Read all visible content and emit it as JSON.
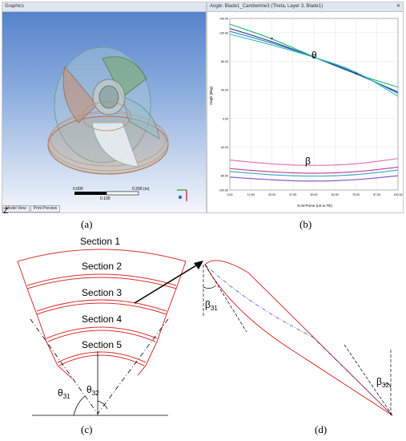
{
  "figure": {
    "panel_a": {
      "window_title": "Graphics",
      "scale": {
        "tick_left": "0.000",
        "tick_mid": "0.100",
        "tick_right": "0.200 (m)"
      },
      "tabs": [
        "Model View",
        "Print Preview"
      ],
      "corner_glyph": "Z",
      "caption": "(a)"
    },
    "panel_b": {
      "window_title": "Angle: Blade1_Camberline3 (Theta, Layer 3, Blade1)",
      "close_glyph": "✕",
      "ylabel": "Angle [deg]",
      "xlabel": "% M-Prime (LE to TE)",
      "theta_label": "θ",
      "beta_label": "β",
      "caption": "(b)"
    },
    "panel_c": {
      "sections": [
        "Section 1",
        "Section 2",
        "Section 3",
        "Section 4",
        "Section 5"
      ],
      "theta_31": "θ",
      "theta_31_sub": "31",
      "theta_32": "θ",
      "theta_32_sub": "32",
      "caption": "(c)"
    },
    "panel_d": {
      "beta_31": "β",
      "beta_31_sub": "31",
      "beta_32": "β",
      "beta_32_sub": "32",
      "caption": "(d)"
    }
  },
  "chart_data": {
    "type": "line",
    "title": "Angle: Blade1_Camberline3 (Theta, Layer 3, Blade1)",
    "xlabel": "% M-Prime (LE to TE)",
    "ylabel": "Angle [deg]",
    "xlim": [
      0,
      100
    ],
    "ylim": [
      -100,
      140
    ],
    "x_ticks": [
      "0.00",
      "12.50",
      "25.00",
      "37.50",
      "50.00",
      "62.50",
      "75.00",
      "87.50",
      "100.00"
    ],
    "y_ticks": [
      "140.54",
      "120.00",
      "80.00",
      "40.00",
      "0.00",
      "-40.00",
      "-80.00",
      "-100.00"
    ],
    "grid": true,
    "series": [
      {
        "color": "#18b86a",
        "x": [
          0,
          25,
          50,
          75,
          100
        ],
        "y": [
          132,
          112,
          86,
          62,
          44
        ]
      },
      {
        "color": "#222a8a",
        "x": [
          0,
          25,
          50,
          75,
          100
        ],
        "y": [
          126,
          108,
          86,
          63,
          37
        ]
      },
      {
        "color": "#3f7ad8",
        "x": [
          0,
          25,
          50,
          75,
          100
        ],
        "y": [
          122,
          106,
          86,
          65,
          35
        ]
      },
      {
        "color": "#2cc3b0",
        "x": [
          0,
          25,
          50,
          75,
          100
        ],
        "y": [
          118,
          103,
          86,
          67,
          31
        ]
      },
      {
        "color": "#e66ab2",
        "x": [
          0,
          25,
          50,
          75,
          100
        ],
        "y": [
          -58,
          -64,
          -66,
          -64,
          -56
        ]
      },
      {
        "color": "#c23a92",
        "x": [
          0,
          25,
          50,
          75,
          100
        ],
        "y": [
          -70,
          -75,
          -77,
          -75,
          -68
        ]
      },
      {
        "color": "#2fa8c8",
        "x": [
          0,
          25,
          50,
          75,
          100
        ],
        "y": [
          -74,
          -79,
          -81,
          -79,
          -72
        ]
      },
      {
        "color": "#7a55c8",
        "x": [
          0,
          25,
          50,
          75,
          100
        ],
        "y": [
          -82,
          -86,
          -88,
          -86,
          -80
        ]
      }
    ]
  }
}
